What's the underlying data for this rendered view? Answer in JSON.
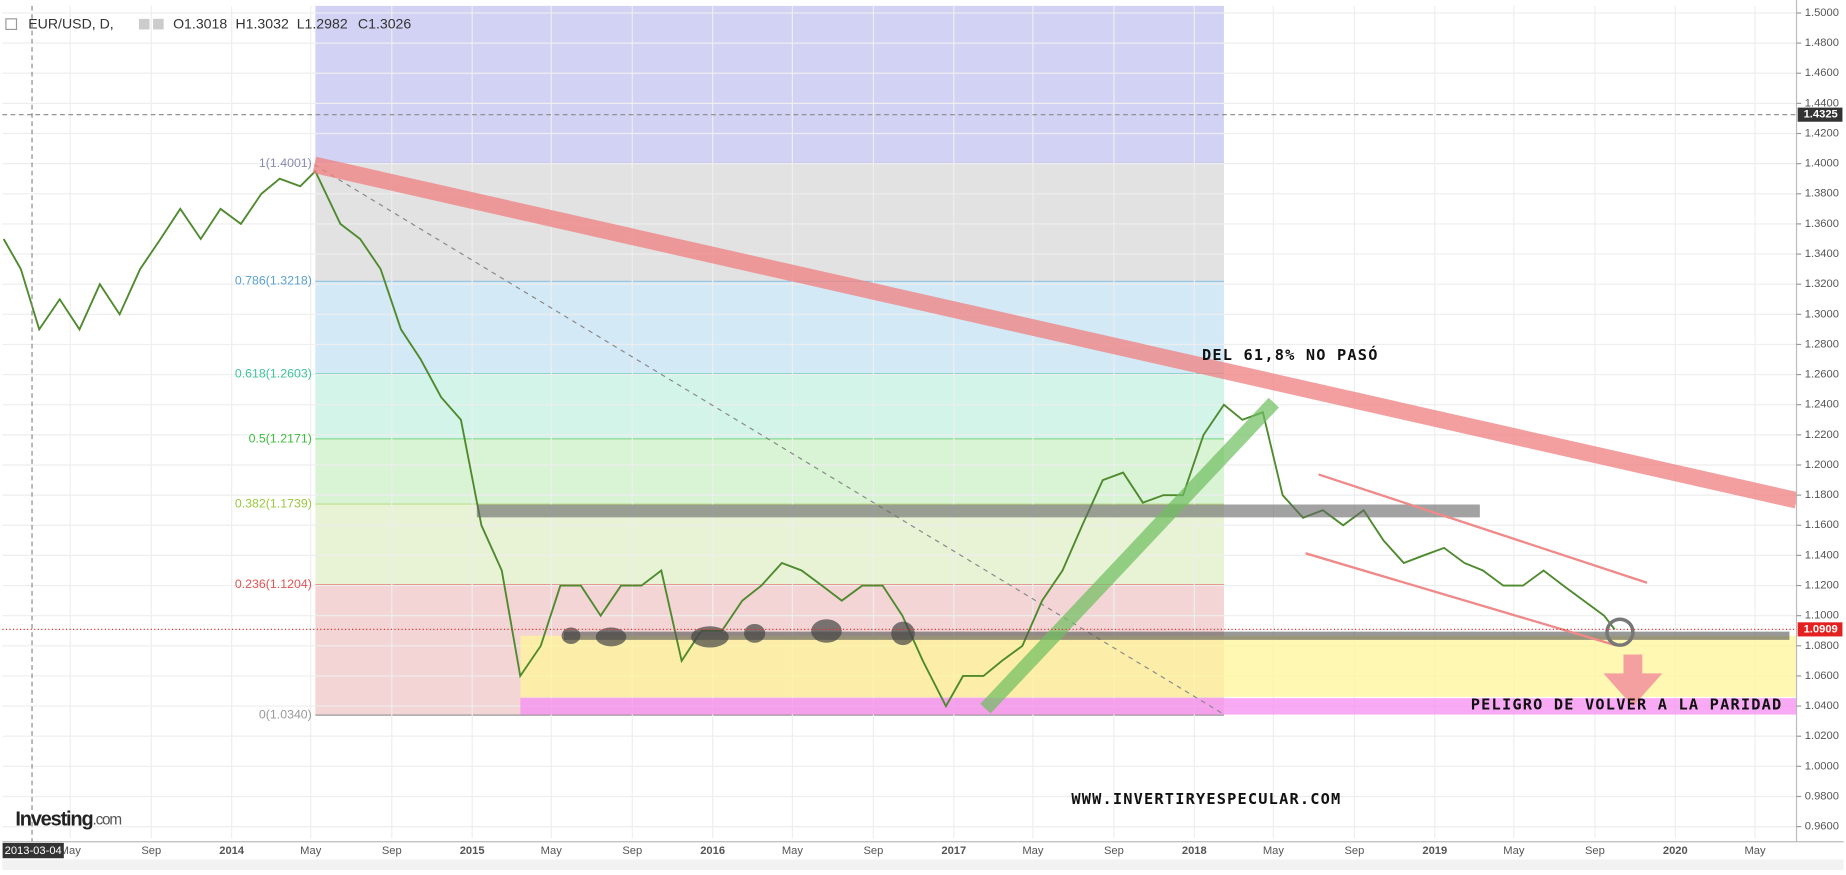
{
  "header": {
    "symbol": "EUR/USD, D,",
    "open": "O1.3018",
    "high": "H1.3032",
    "low": "L1.2982",
    "close": "C1.3026"
  },
  "logo": {
    "brand": "Investing",
    "suffix": ".com"
  },
  "chart_data": {
    "type": "line",
    "color": "#4f8a2e",
    "x": [
      "2013-01-20",
      "2013-02-15",
      "2013-03-15",
      "2013-04-15",
      "2013-05-15",
      "2013-06-15",
      "2013-07-15",
      "2013-08-15",
      "2013-09-15",
      "2013-10-15",
      "2013-11-15",
      "2013-12-15",
      "2014-01-15",
      "2014-02-15",
      "2014-03-15",
      "2014-04-15",
      "2014-05-08",
      "2014-06-15",
      "2014-07-15",
      "2014-08-15",
      "2014-09-15",
      "2014-10-15",
      "2014-11-15",
      "2014-12-15",
      "2015-01-15",
      "2015-02-15",
      "2015-03-15",
      "2015-04-15",
      "2015-05-15",
      "2015-06-15",
      "2015-07-15",
      "2015-08-15",
      "2015-09-15",
      "2015-10-15",
      "2015-11-15",
      "2015-12-15",
      "2016-01-15",
      "2016-02-15",
      "2016-03-15",
      "2016-04-15",
      "2016-05-15",
      "2016-06-15",
      "2016-07-15",
      "2016-08-15",
      "2016-09-15",
      "2016-10-15",
      "2016-11-15",
      "2016-12-20",
      "2017-01-15",
      "2017-02-15",
      "2017-03-15",
      "2017-04-15",
      "2017-05-15",
      "2017-06-15",
      "2017-07-15",
      "2017-08-15",
      "2017-09-15",
      "2017-10-15",
      "2017-11-15",
      "2017-12-15",
      "2018-01-15",
      "2018-02-15",
      "2018-03-15",
      "2018-04-15",
      "2018-05-15",
      "2018-06-15",
      "2018-07-15",
      "2018-08-15",
      "2018-09-15",
      "2018-10-15",
      "2018-11-15",
      "2018-12-15",
      "2019-01-15",
      "2019-02-15",
      "2019-03-15",
      "2019-04-15",
      "2019-05-15",
      "2019-06-15",
      "2019-07-15",
      "2019-08-15",
      "2019-09-15",
      "2019-10-01"
    ],
    "values": [
      1.35,
      1.33,
      1.29,
      1.31,
      1.29,
      1.32,
      1.3,
      1.33,
      1.35,
      1.37,
      1.35,
      1.37,
      1.36,
      1.38,
      1.39,
      1.385,
      1.395,
      1.36,
      1.35,
      1.33,
      1.29,
      1.27,
      1.245,
      1.23,
      1.16,
      1.13,
      1.06,
      1.08,
      1.12,
      1.12,
      1.1,
      1.12,
      1.12,
      1.13,
      1.07,
      1.09,
      1.09,
      1.11,
      1.12,
      1.135,
      1.13,
      1.12,
      1.11,
      1.12,
      1.12,
      1.1,
      1.07,
      1.04,
      1.06,
      1.06,
      1.07,
      1.08,
      1.11,
      1.13,
      1.16,
      1.19,
      1.195,
      1.175,
      1.18,
      1.18,
      1.22,
      1.24,
      1.23,
      1.235,
      1.18,
      1.165,
      1.17,
      1.16,
      1.17,
      1.15,
      1.135,
      1.14,
      1.145,
      1.135,
      1.13,
      1.12,
      1.12,
      1.13,
      1.12,
      1.11,
      1.1,
      1.0909
    ],
    "xlim": [
      "2013-01-18",
      "2020-07-03"
    ],
    "xticks": [
      {
        "value": "2013-05-01",
        "label": "May"
      },
      {
        "value": "2013-09-01",
        "label": "Sep"
      },
      {
        "value": "2014-01-01",
        "label": "2014"
      },
      {
        "value": "2014-05-01",
        "label": "May"
      },
      {
        "value": "2014-09-01",
        "label": "Sep"
      },
      {
        "value": "2015-01-01",
        "label": "2015"
      },
      {
        "value": "2015-05-01",
        "label": "May"
      },
      {
        "value": "2015-09-01",
        "label": "Sep"
      },
      {
        "value": "2016-01-01",
        "label": "2016"
      },
      {
        "value": "2016-05-01",
        "label": "May"
      },
      {
        "value": "2016-09-01",
        "label": "Sep"
      },
      {
        "value": "2017-01-01",
        "label": "2017"
      },
      {
        "value": "2017-05-01",
        "label": "May"
      },
      {
        "value": "2017-09-01",
        "label": "Sep"
      },
      {
        "value": "2018-01-01",
        "label": "2018"
      },
      {
        "value": "2018-05-01",
        "label": "May"
      },
      {
        "value": "2018-09-01",
        "label": "Sep"
      },
      {
        "value": "2019-01-01",
        "label": "2019"
      },
      {
        "value": "2019-05-01",
        "label": "May"
      },
      {
        "value": "2019-09-01",
        "label": "Sep"
      },
      {
        "value": "2020-01-01",
        "label": "2020"
      },
      {
        "value": "2020-05-01",
        "label": "May"
      }
    ],
    "ylim": [
      0.9523,
      1.5047
    ],
    "yticks": [
      {
        "value": 1.5,
        "label": "1.5000"
      },
      {
        "value": 1.48,
        "label": "1.4800"
      },
      {
        "value": 1.46,
        "label": "1.4600"
      },
      {
        "value": 1.44,
        "label": "1.4400"
      },
      {
        "value": 1.42,
        "label": "1.4200"
      },
      {
        "value": 1.4,
        "label": "1.4000"
      },
      {
        "value": 1.38,
        "label": "1.3800"
      },
      {
        "value": 1.36,
        "label": "1.3600"
      },
      {
        "value": 1.34,
        "label": "1.3400"
      },
      {
        "value": 1.32,
        "label": "1.3200"
      },
      {
        "value": 1.3,
        "label": "1.3000"
      },
      {
        "value": 1.28,
        "label": "1.2800"
      },
      {
        "value": 1.26,
        "label": "1.2600"
      },
      {
        "value": 1.24,
        "label": "1.2400"
      },
      {
        "value": 1.22,
        "label": "1.2200"
      },
      {
        "value": 1.2,
        "label": "1.2000"
      },
      {
        "value": 1.18,
        "label": "1.1800"
      },
      {
        "value": 1.16,
        "label": "1.1600"
      },
      {
        "value": 1.14,
        "label": "1.1400"
      },
      {
        "value": 1.12,
        "label": "1.1200"
      },
      {
        "value": 1.1,
        "label": "1.1000"
      },
      {
        "value": 1.08,
        "label": "1.0800"
      },
      {
        "value": 1.06,
        "label": "1.0600"
      },
      {
        "value": 1.04,
        "label": "1.0400"
      },
      {
        "value": 1.02,
        "label": "1.0200"
      },
      {
        "value": 1.0,
        "label": "1.0000"
      },
      {
        "value": 0.98,
        "label": "0.9800"
      },
      {
        "value": 0.96,
        "label": "0.9600"
      }
    ],
    "grid": true,
    "fib": {
      "range": [
        "2014-05-08",
        "2018-02-15"
      ],
      "top_fill": "#d2d2f5",
      "levels": [
        {
          "value": 1.4001,
          "label": "1(1.4001)",
          "color": "#8a8ab0",
          "fill": "#d2d2f5"
        },
        {
          "value": 1.3218,
          "label": "0.786(1.3218)",
          "color": "#5aa0d2",
          "fill": "#e2e2e2"
        },
        {
          "value": 1.2603,
          "label": "0.618(1.2603)",
          "color": "#3fc29a",
          "fill": "#d4e9f6"
        },
        {
          "value": 1.2171,
          "label": "0.5(1.2171)",
          "color": "#3cbc3c",
          "fill": "#d3f4e8"
        },
        {
          "value": 1.1739,
          "label": "0.382(1.1739)",
          "color": "#98c83a",
          "fill": "#d9f3d5"
        },
        {
          "value": 1.1204,
          "label": "0.236(1.1204)",
          "color": "#e05555",
          "fill": "#e8f3d6"
        },
        {
          "value": 1.034,
          "label": "0(1.0340)",
          "color": "#999999",
          "fill": "#f3d5d5"
        }
      ]
    },
    "crosshair": {
      "x": "2013-03-04",
      "y": 1.4325
    },
    "last_price": 1.0909,
    "annotations": [
      "DEL 61,8% NO PASÓ",
      "PELIGRO DE VOLVER A LA PARIDAD",
      "WWW.INVERTIRYESPECULAR.COM"
    ]
  }
}
